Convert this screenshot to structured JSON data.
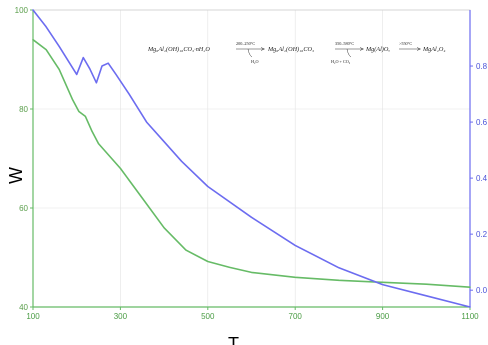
{
  "chart_data": {
    "type": "line",
    "title": "",
    "xlabel": "T",
    "ylabel_left": "W",
    "ylabel_right": "",
    "x_ticks": [
      100,
      300,
      500,
      700,
      900,
      1100
    ],
    "y_left_ticks": [
      40,
      60,
      80,
      100
    ],
    "y_right_ticks": [
      "0.0",
      "0.2",
      "0.4",
      "0.6",
      "0.8"
    ],
    "xlim": [
      100,
      1100
    ],
    "ylim_left": [
      40,
      100
    ],
    "grid": true,
    "series": [
      {
        "name": "",
        "axis": "left",
        "color": "#66bb66",
        "x": [
          100,
          130,
          160,
          190,
          205,
          220,
          235,
          250,
          300,
          350,
          400,
          450,
          500,
          550,
          600,
          700,
          800,
          900,
          1000,
          1100
        ],
        "y": [
          94,
          92,
          88,
          82,
          79.5,
          78.5,
          75.5,
          73,
          68,
          62,
          56,
          51.5,
          49.2,
          48,
          47,
          46,
          45.4,
          45,
          44.6,
          44
        ]
      },
      {
        "name": "",
        "axis": "right",
        "color": "#6c6cf0",
        "x": [
          100,
          130,
          160,
          200,
          215,
          230,
          245,
          258,
          272,
          290,
          320,
          360,
          400,
          440,
          500,
          600,
          700,
          800,
          900,
          1000,
          1100
        ],
        "y": [
          1.0,
          0.94,
          0.87,
          0.77,
          0.83,
          0.79,
          0.74,
          0.8,
          0.81,
          0.77,
          0.7,
          0.6,
          0.53,
          0.46,
          0.37,
          0.26,
          0.16,
          0.08,
          0.02,
          -0.02,
          -0.06
        ]
      }
    ],
    "annotation": {
      "species1": "Mg₆Al₂(OH)₁₆CO₃·nH₂O",
      "step1_temp": "200–250°C",
      "step1_loss": "H₂O",
      "species2": "Mg₆Al₂(OH)₁₆CO₃",
      "step2_temp": "350–580°C",
      "step2_loss": "H₂O + CO₂",
      "species3": "Mg(Al)Oₓ",
      "step3_temp": ">550°C",
      "species4": "MgAl₂O₄"
    }
  }
}
